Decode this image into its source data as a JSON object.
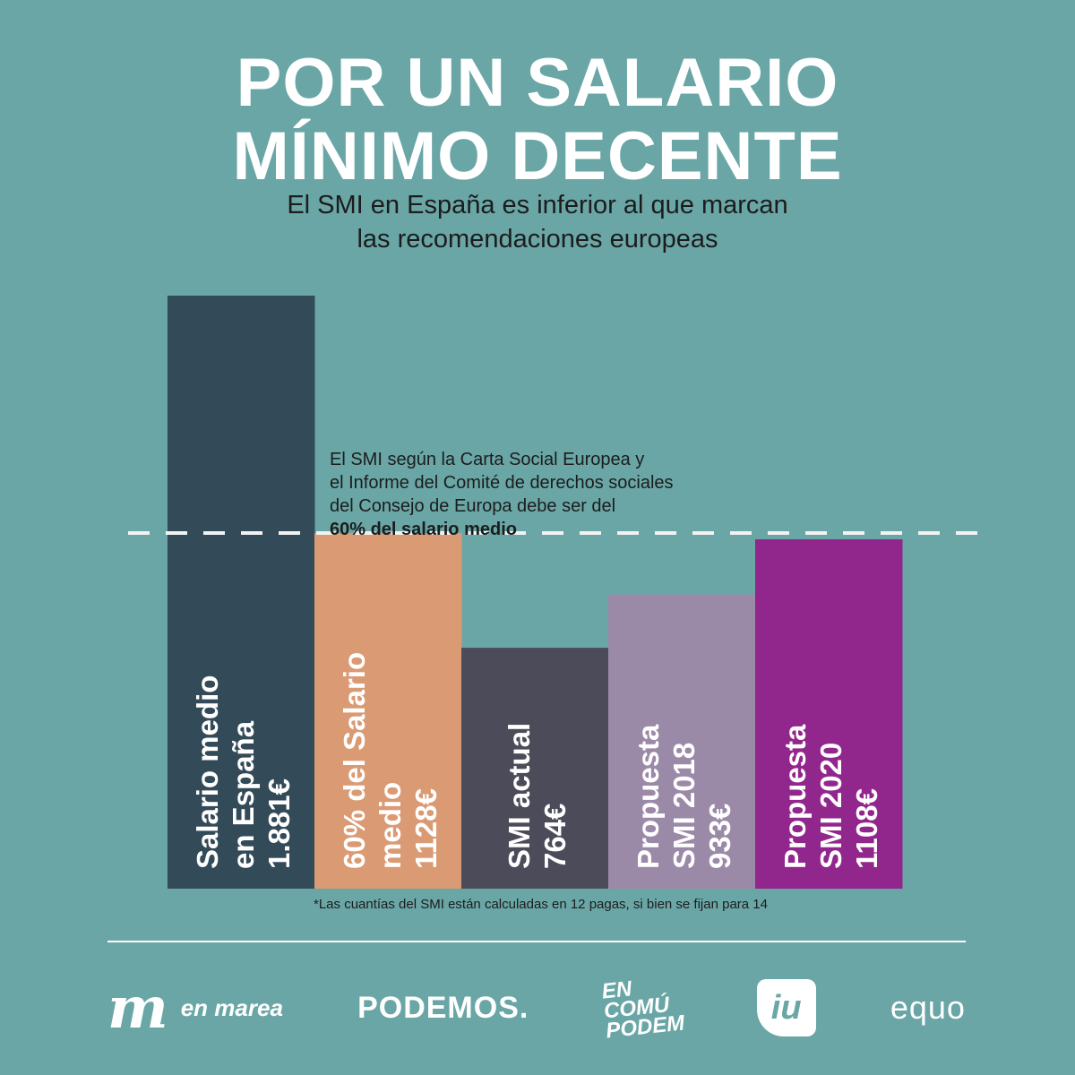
{
  "header": {
    "title_line1": "POR UN SALARIO",
    "title_line2": "MÍNIMO DECENTE",
    "subtitle_line1": "El SMI en España es inferior al que marcan",
    "subtitle_line2": "las recomendaciones europeas"
  },
  "note": {
    "line1": "El SMI según la Carta Social Europea  y",
    "line2": "el Informe del Comité de derechos sociales",
    "line3": "del Consejo de Europa debe ser del",
    "bold": "60% del salario medio"
  },
  "footnote": "*Las cuantías del SMI están calculadas en 12 pagas, si bien se fijan para 14",
  "chart_data": {
    "type": "bar",
    "title": "POR UN SALARIO MÍNIMO DECENTE",
    "ylabel": "€",
    "ylim": [
      0,
      1881
    ],
    "reference_line": {
      "value": 1128,
      "label": "60% del salario medio",
      "style": "dashed"
    },
    "categories": [
      [
        "Salario medio",
        "en España",
        "1.881€"
      ],
      [
        "60% del Salario",
        "medio",
        "1128€"
      ],
      [
        "SMI actual",
        "764€"
      ],
      [
        "Propuesta",
        "SMI 2018",
        "933€"
      ],
      [
        "Propuesta",
        "SMI 2020",
        "1108€"
      ]
    ],
    "values": [
      1881,
      1128,
      764,
      933,
      1108
    ],
    "colors": [
      "#334a58",
      "#da9a73",
      "#4b4b59",
      "#9b89a8",
      "#91268c"
    ]
  },
  "logos": {
    "enmarea_mark": "m",
    "enmarea": "en marea",
    "podemos": "PODEMOS.",
    "ecp_1": "EN",
    "ecp_2": "COMÚ",
    "ecp_3": "PODEM",
    "iu": "iu",
    "equo": "equo"
  }
}
